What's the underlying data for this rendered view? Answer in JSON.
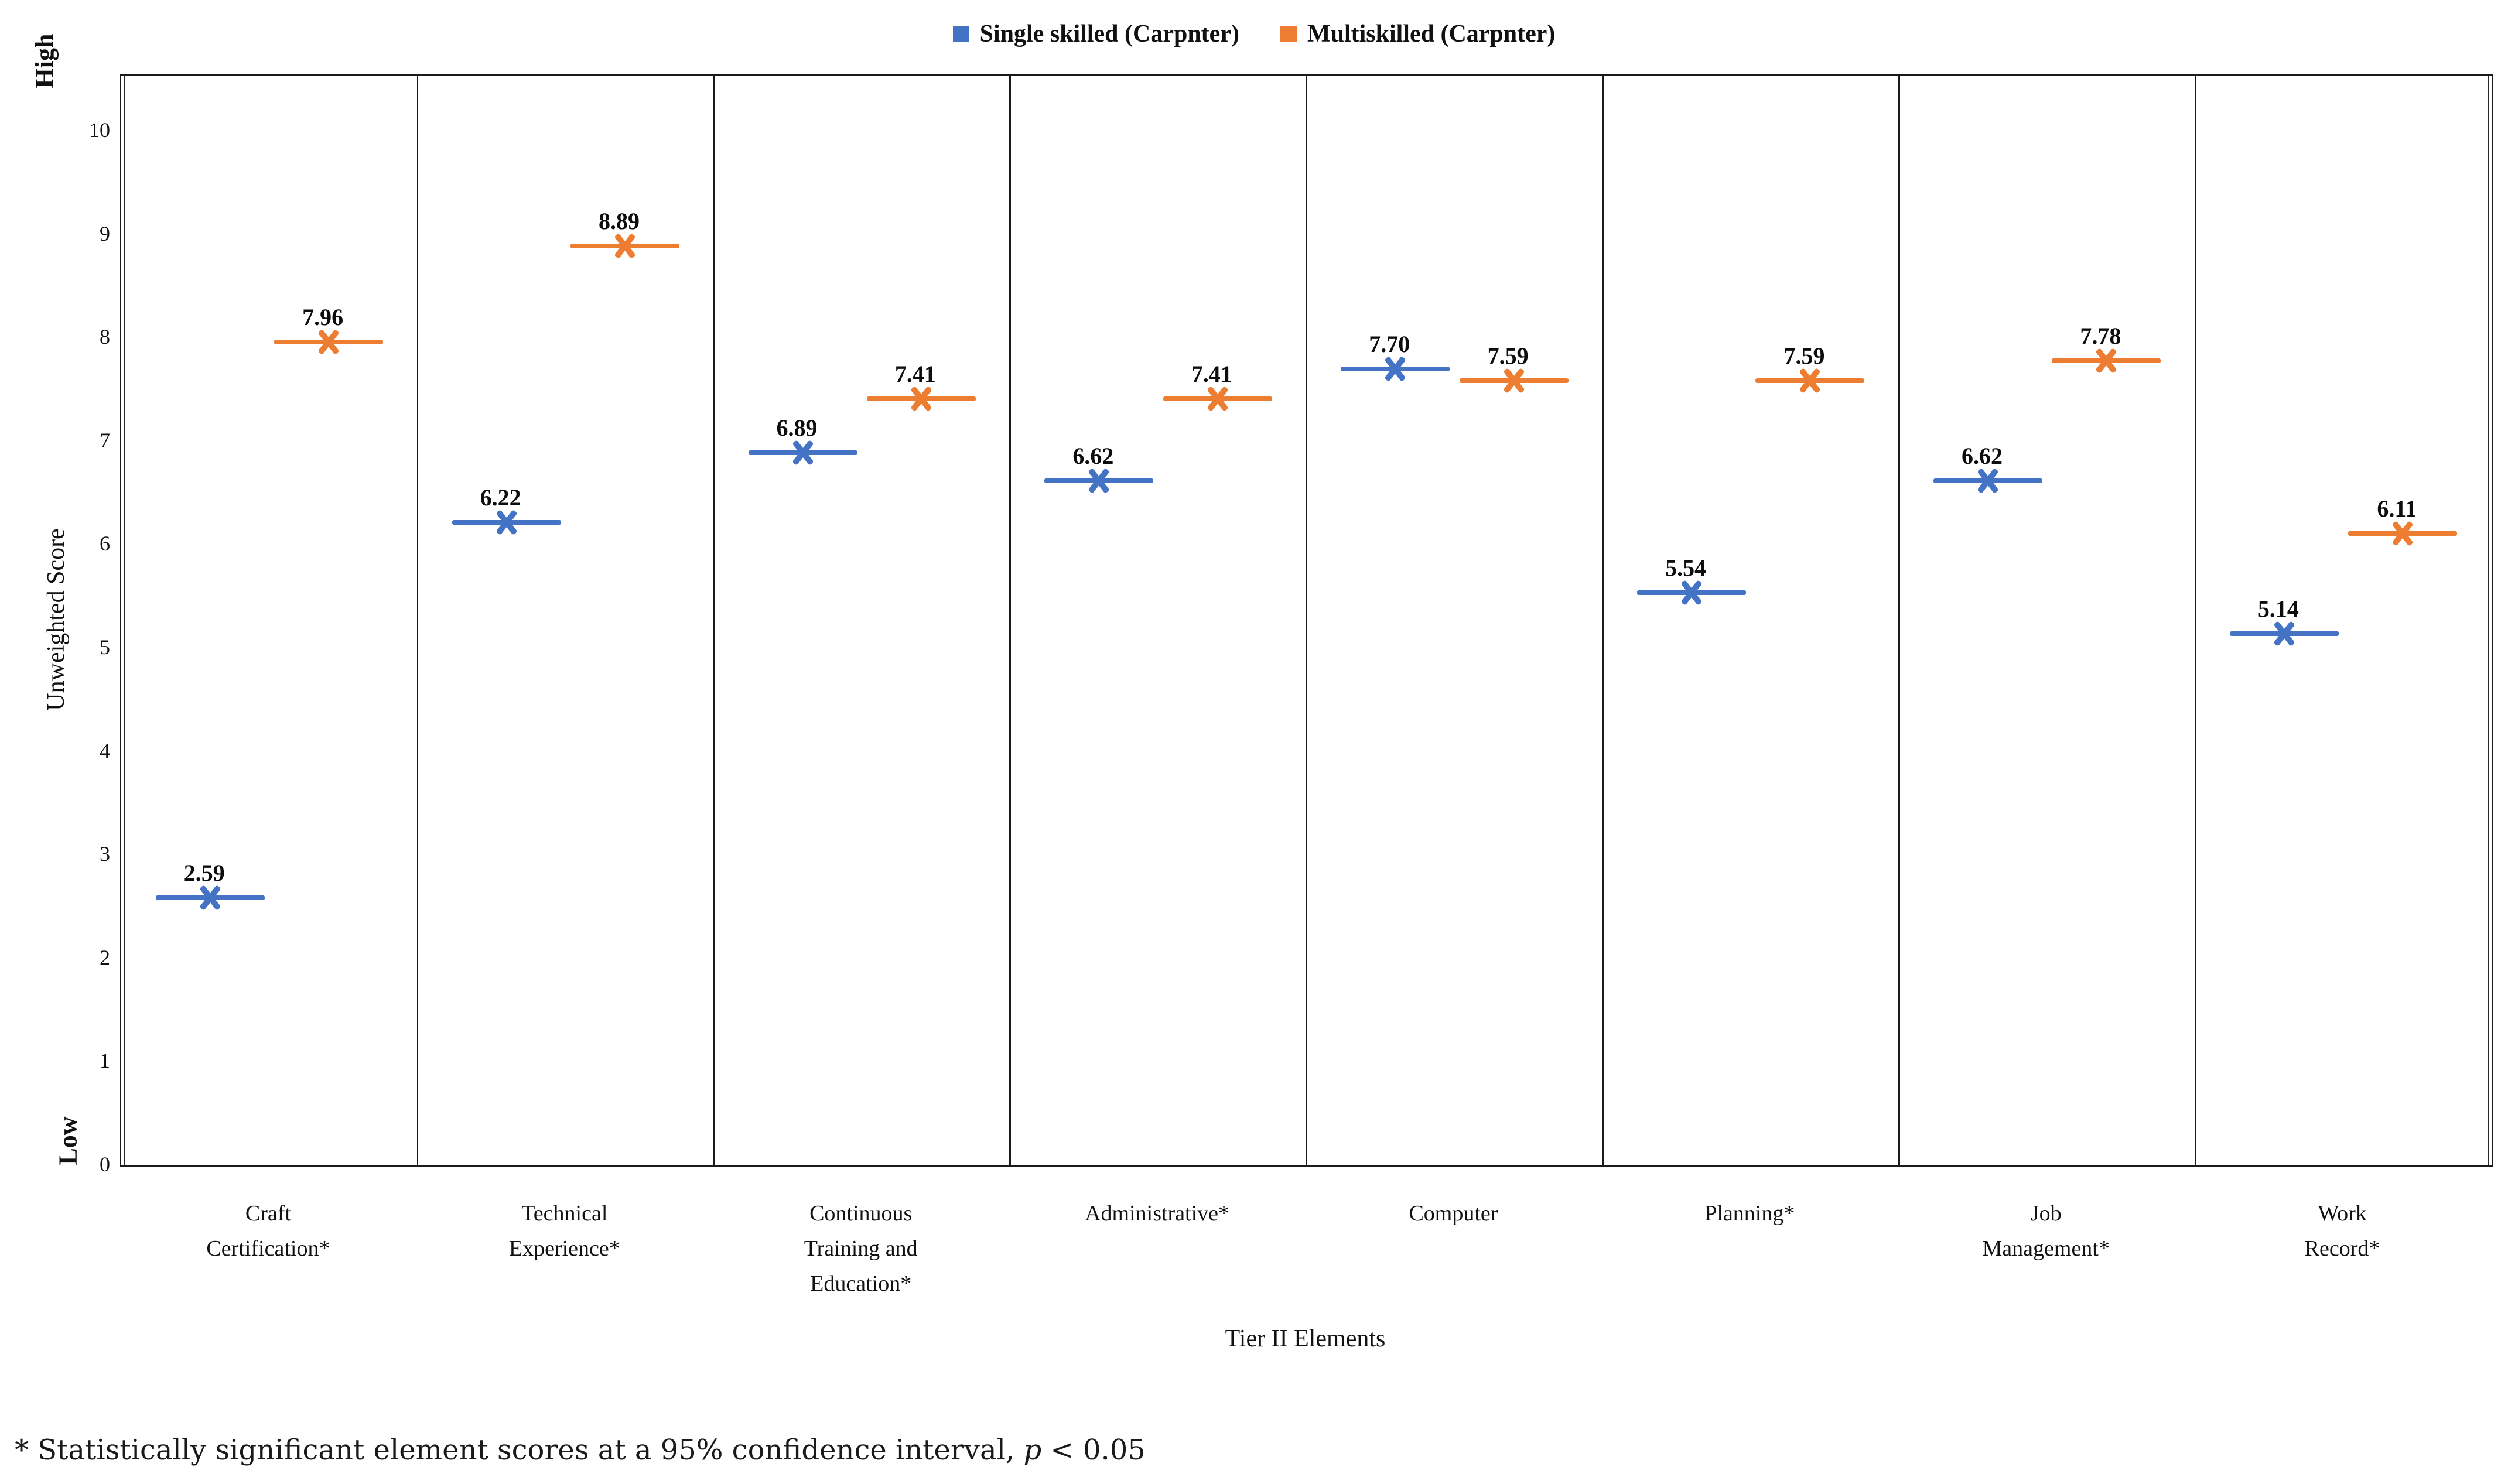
{
  "legend": {
    "items": [
      {
        "label": "Single skilled (Carpnter)",
        "color": "#4472C4"
      },
      {
        "label": "Multiskilled (Carpnter)",
        "color": "#ED7D31"
      }
    ]
  },
  "y_axis": {
    "title": "Unweighted Score",
    "high_label": "High",
    "low_label": "Low",
    "ticks": [
      0,
      1,
      2,
      3,
      4,
      5,
      6,
      7,
      8,
      9,
      10
    ]
  },
  "x_axis": {
    "title": "Tier II Elements"
  },
  "footnote": {
    "prefix": "* Statistically significant element scores at a 95% confidence interval, ",
    "italic_var": "p",
    "suffix": " < 0.05"
  },
  "chart_data": {
    "type": "scatter",
    "title": "",
    "xlabel": "Tier II Elements",
    "ylabel": "Unweighted Score",
    "ylim": [
      0,
      10
    ],
    "grid": false,
    "legend_position": "top-center",
    "marker": "x-with-horizontal-dash",
    "value_labels": true,
    "categories": [
      "Craft Certification*",
      "Technical Experience*",
      "Continuous Training and Education*",
      "Administrative*",
      "Computer",
      "Planning*",
      "Job Management*",
      "Work Record*"
    ],
    "category_lines": [
      [
        "Craft",
        "Certification*"
      ],
      [
        "Technical",
        "Experience*"
      ],
      [
        "Continuous",
        "Training and",
        "Education*"
      ],
      [
        "Administrative*"
      ],
      [
        "Computer"
      ],
      [
        "Planning*"
      ],
      [
        "Job",
        "Management*"
      ],
      [
        "Work",
        "Record*"
      ]
    ],
    "series": [
      {
        "name": "Single skilled (Carpnter)",
        "color": "#4472C4",
        "values": [
          2.59,
          6.22,
          6.89,
          6.62,
          7.7,
          5.54,
          6.62,
          5.14
        ]
      },
      {
        "name": "Multiskilled (Carpnter)",
        "color": "#ED7D31",
        "values": [
          7.96,
          8.89,
          7.41,
          7.41,
          7.59,
          7.59,
          7.78,
          6.11
        ]
      }
    ]
  }
}
